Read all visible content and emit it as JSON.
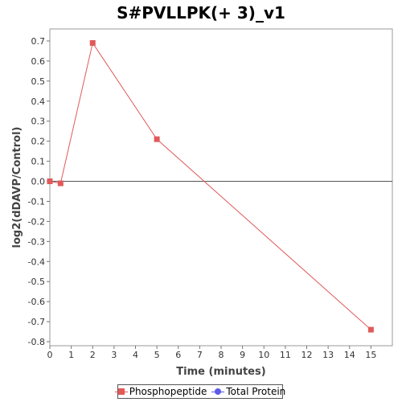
{
  "chart_data": {
    "type": "line",
    "title": "S#PVLLPK(+ 3)_v1",
    "xlabel": "Time (minutes)",
    "ylabel": "log2(dDAVP/Control)",
    "xlim": [
      0,
      16
    ],
    "ylim": [
      -0.82,
      0.76
    ],
    "x_ticks": [
      0,
      1,
      2,
      3,
      4,
      5,
      6,
      7,
      8,
      9,
      10,
      11,
      12,
      13,
      14,
      15
    ],
    "y_ticks": [
      0.7,
      0.6,
      0.5,
      0.4,
      0.3,
      0.2,
      0.1,
      0.0,
      -0.1,
      -0.2,
      -0.3,
      -0.4,
      -0.5,
      -0.6,
      -0.7,
      -0.8
    ],
    "y_tick_labels": [
      "0.7",
      "0.6",
      "0.5",
      "0.4",
      "0.3",
      "0.2",
      "0.1",
      "0.0",
      "-0.1",
      "-0.2",
      "-0.3",
      "-0.4",
      "-0.5",
      "-0.6",
      "-0.7",
      "-0.8"
    ],
    "zero_line": true,
    "grid": false,
    "legend_position": "bottom-center",
    "series": [
      {
        "name": "Phosphopeptide",
        "color": "#e05a5a",
        "marker": "square",
        "points": [
          {
            "x": 0,
            "y": 0.0
          },
          {
            "x": 0.5,
            "y": -0.01
          },
          {
            "x": 2,
            "y": 0.69
          },
          {
            "x": 5,
            "y": 0.21
          },
          {
            "x": 15,
            "y": -0.74
          }
        ]
      },
      {
        "name": "Total Protein",
        "color": "#5b5bea",
        "marker": "circle",
        "points": []
      }
    ]
  }
}
